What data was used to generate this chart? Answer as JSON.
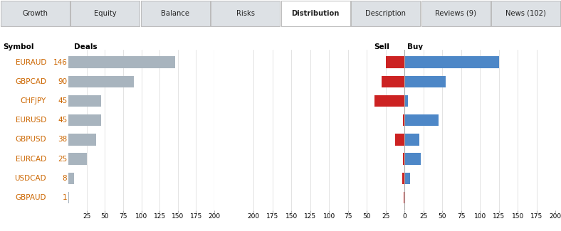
{
  "symbols": [
    "EURAUD",
    "GBPCAD",
    "CHFJPY",
    "EURUSD",
    "GBPUSD",
    "EURCAD",
    "USDCAD",
    "GBPAUD"
  ],
  "deals": [
    146,
    90,
    45,
    45,
    38,
    25,
    8,
    1
  ],
  "sell": [
    25,
    30,
    40,
    2,
    12,
    2,
    3,
    1
  ],
  "buy": [
    125,
    55,
    5,
    45,
    20,
    22,
    7,
    0
  ],
  "tab_labels": [
    "Growth",
    "Equity",
    "Balance",
    "Risks",
    "Distribution",
    "Description",
    "Reviews (9)",
    "News (102)"
  ],
  "active_tab_idx": 4,
  "deals_color": "#a8b4be",
  "sell_color": "#cc2222",
  "buy_color": "#4d87c7",
  "bg_color": "#ffffff",
  "tab_bg": "#dde1e5",
  "active_tab_bg": "#ffffff",
  "grid_color": "#d8d8d8",
  "symbol_color": "#cc6600",
  "label_color": "#000000",
  "bar_height": 0.6,
  "fig_width": 7.88,
  "fig_height": 3.25
}
